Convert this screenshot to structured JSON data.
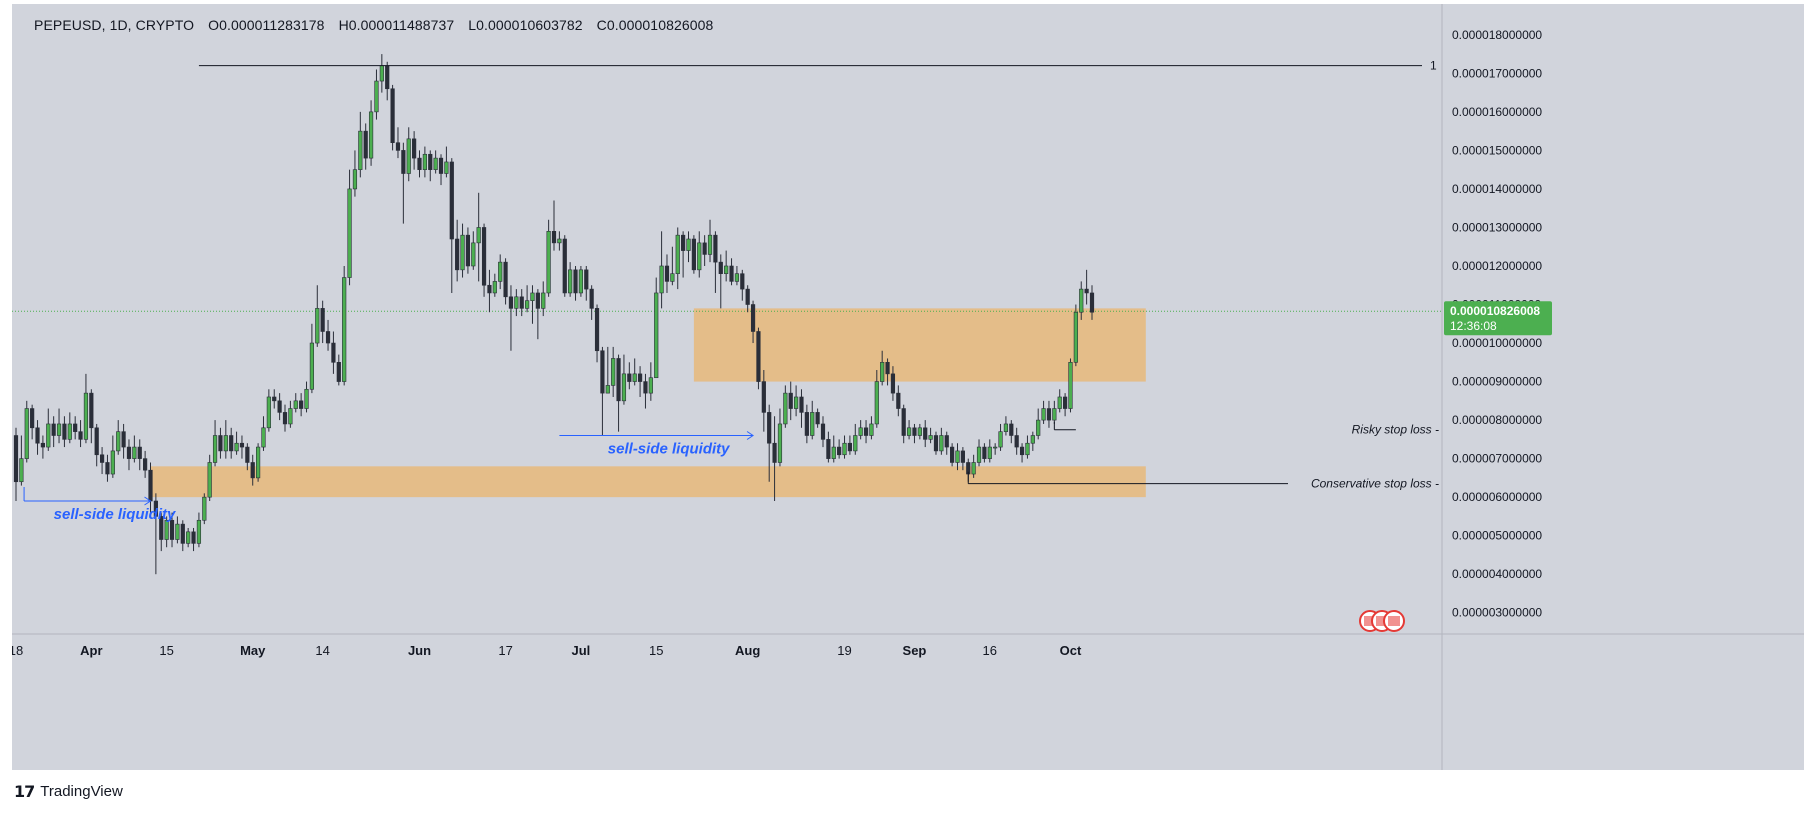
{
  "header": {
    "symbol": "PEPEUSD, 1D, CRYPTO",
    "open": "O0.000011283178",
    "high": "H0.000011488737",
    "low": "L0.000010603782",
    "close": "C0.000010826008"
  },
  "price_tag": {
    "price": "0.000010826008",
    "countdown": "12:36:08"
  },
  "fib_label": "1",
  "annotations": {
    "ssl_left": "sell-side liquidity",
    "ssl_mid": "sell-side liquidity",
    "risky": "Risky stop loss -",
    "conservative": "Conservative stop loss -"
  },
  "brand": "TradingView",
  "colors": {
    "background": "#d1d4dc",
    "up": "#4caf50",
    "down": "#2a2e39",
    "zone": "#e8b87a",
    "annotation_blue": "#2962ff",
    "price_tag": "#4caf50"
  },
  "chart_data": {
    "type": "candlestick",
    "symbol": "PEPEUSD",
    "timeframe": "1D",
    "ylim": [
      2.5e-06,
      1.88e-05
    ],
    "y_ticks": [
      "0.000003000000",
      "0.000004000000",
      "0.000005000000",
      "0.000006000000",
      "0.000007000000",
      "0.000008000000",
      "0.000009000000",
      "0.000010000000",
      "0.000011000000",
      "0.000012000000",
      "0.000013000000",
      "0.000014000000",
      "0.000015000000",
      "0.000016000000",
      "0.000017000000",
      "0.000018000000"
    ],
    "x_ticks": [
      {
        "i": 0,
        "label": "18"
      },
      {
        "i": 14,
        "label": "Apr"
      },
      {
        "i": 28,
        "label": "15"
      },
      {
        "i": 44,
        "label": "May"
      },
      {
        "i": 57,
        "label": "14"
      },
      {
        "i": 75,
        "label": "Jun"
      },
      {
        "i": 91,
        "label": "17"
      },
      {
        "i": 105,
        "label": "Jul"
      },
      {
        "i": 119,
        "label": "15"
      },
      {
        "i": 136,
        "label": "Aug"
      },
      {
        "i": 154,
        "label": "19"
      },
      {
        "i": 167,
        "label": "Sep"
      },
      {
        "i": 181,
        "label": "16"
      },
      {
        "i": 196,
        "label": "Oct"
      }
    ],
    "current_price": 1.0826008e-05,
    "fib_level": 1.72e-05,
    "zones": [
      {
        "from_i": 25,
        "to_i": 210,
        "low": 6e-06,
        "high": 6.8e-06
      },
      {
        "from_i": 126,
        "to_i": 210,
        "low": 9e-06,
        "high": 1.09e-05
      }
    ],
    "candles": [
      [
        7.6,
        6.4,
        7.8,
        5.9
      ],
      [
        6.4,
        7.0,
        7.6,
        6.3
      ],
      [
        7.0,
        8.3,
        8.5,
        6.9
      ],
      [
        8.3,
        7.8,
        8.4,
        7.5
      ],
      [
        7.8,
        7.4,
        8.0,
        7.1
      ],
      [
        7.4,
        7.3,
        7.6,
        7.0
      ],
      [
        7.3,
        7.9,
        8.3,
        7.2
      ],
      [
        7.9,
        7.6,
        8.1,
        7.3
      ],
      [
        7.6,
        7.9,
        8.3,
        7.4
      ],
      [
        7.9,
        7.5,
        8.1,
        7.3
      ],
      [
        7.5,
        7.9,
        8.2,
        7.4
      ],
      [
        7.9,
        7.7,
        8.1,
        7.5
      ],
      [
        7.7,
        7.5,
        8.0,
        7.3
      ],
      [
        7.5,
        8.7,
        9.2,
        7.4
      ],
      [
        8.7,
        7.8,
        8.8,
        7.4
      ],
      [
        7.8,
        7.1,
        7.9,
        6.8
      ],
      [
        7.1,
        6.9,
        7.3,
        6.6
      ],
      [
        6.9,
        6.6,
        7.1,
        6.4
      ],
      [
        6.6,
        7.2,
        7.6,
        6.5
      ],
      [
        7.2,
        7.7,
        8.0,
        7.1
      ],
      [
        7.7,
        7.3,
        7.9,
        7.0
      ],
      [
        7.3,
        7.0,
        7.5,
        6.7
      ],
      [
        7.0,
        7.3,
        7.6,
        6.9
      ],
      [
        7.3,
        7.0,
        7.5,
        6.7
      ],
      [
        7.0,
        6.7,
        7.2,
        6.5
      ],
      [
        6.7,
        5.9,
        6.9,
        5.6
      ],
      [
        5.9,
        5.5,
        6.1,
        4.0
      ],
      [
        5.5,
        4.9,
        5.6,
        4.6
      ],
      [
        4.9,
        5.4,
        5.5,
        4.7
      ],
      [
        5.4,
        4.9,
        5.6,
        4.7
      ],
      [
        4.9,
        5.3,
        5.5,
        4.8
      ],
      [
        5.3,
        4.8,
        5.4,
        4.6
      ],
      [
        4.8,
        5.1,
        5.2,
        4.7
      ],
      [
        5.1,
        4.8,
        5.2,
        4.6
      ],
      [
        4.8,
        5.4,
        5.6,
        4.7
      ],
      [
        5.4,
        6.0,
        6.1,
        5.3
      ],
      [
        6.0,
        6.9,
        7.1,
        5.9
      ],
      [
        6.9,
        7.6,
        8.0,
        6.8
      ],
      [
        7.6,
        7.2,
        7.8,
        7.0
      ],
      [
        7.2,
        7.6,
        8.0,
        7.0
      ],
      [
        7.6,
        7.2,
        7.8,
        7.0
      ],
      [
        7.2,
        7.4,
        7.7,
        7.1
      ],
      [
        7.4,
        7.3,
        7.6,
        7.0
      ],
      [
        7.3,
        6.9,
        7.4,
        6.7
      ],
      [
        6.9,
        6.5,
        7.1,
        6.3
      ],
      [
        6.5,
        7.3,
        7.4,
        6.4
      ],
      [
        7.3,
        7.8,
        8.1,
        7.2
      ],
      [
        7.8,
        8.6,
        8.8,
        7.7
      ],
      [
        8.6,
        8.5,
        8.8,
        8.3
      ],
      [
        8.5,
        8.2,
        8.7,
        8.0
      ],
      [
        8.2,
        7.9,
        8.4,
        7.7
      ],
      [
        7.9,
        8.3,
        8.5,
        7.8
      ],
      [
        8.3,
        8.5,
        8.7,
        8.2
      ],
      [
        8.5,
        8.3,
        8.7,
        8.1
      ],
      [
        8.3,
        8.8,
        9.0,
        8.2
      ],
      [
        8.8,
        10.0,
        10.5,
        8.7
      ],
      [
        10.0,
        10.9,
        11.5,
        9.9
      ],
      [
        10.9,
        10.3,
        11.1,
        10.0
      ],
      [
        10.3,
        10.0,
        10.6,
        9.8
      ],
      [
        10.0,
        9.5,
        10.3,
        9.2
      ],
      [
        9.5,
        9.0,
        9.7,
        8.9
      ],
      [
        9.0,
        11.7,
        12.0,
        8.9
      ],
      [
        11.7,
        14.0,
        14.5,
        11.5
      ],
      [
        14.0,
        14.5,
        15.0,
        13.8
      ],
      [
        14.5,
        15.5,
        16.0,
        14.3
      ],
      [
        15.5,
        14.8,
        15.7,
        14.5
      ],
      [
        14.8,
        16.0,
        16.3,
        14.6
      ],
      [
        16.0,
        16.8,
        17.1,
        15.8
      ],
      [
        16.8,
        17.2,
        17.5,
        16.5
      ],
      [
        17.2,
        16.6,
        17.3,
        16.3
      ],
      [
        16.6,
        15.2,
        16.7,
        15.0
      ],
      [
        15.2,
        15.0,
        15.6,
        14.8
      ],
      [
        15.0,
        14.4,
        15.2,
        13.1
      ],
      [
        14.4,
        15.3,
        15.6,
        14.2
      ],
      [
        15.3,
        14.8,
        15.5,
        14.5
      ],
      [
        14.8,
        14.5,
        15.0,
        14.3
      ],
      [
        14.5,
        14.9,
        15.1,
        14.3
      ],
      [
        14.9,
        14.5,
        15.0,
        14.2
      ],
      [
        14.5,
        14.8,
        15.0,
        14.4
      ],
      [
        14.8,
        14.4,
        14.9,
        14.1
      ],
      [
        14.4,
        14.7,
        15.1,
        14.3
      ],
      [
        14.7,
        12.7,
        14.8,
        11.3
      ],
      [
        12.7,
        11.9,
        13.2,
        11.6
      ],
      [
        11.9,
        12.8,
        13.1,
        11.7
      ],
      [
        12.8,
        12.0,
        13.0,
        11.8
      ],
      [
        12.0,
        12.6,
        12.9,
        11.9
      ],
      [
        12.6,
        13.0,
        13.9,
        11.6
      ],
      [
        13.0,
        11.5,
        13.1,
        11.2
      ],
      [
        11.5,
        11.3,
        11.9,
        10.8
      ],
      [
        11.3,
        11.6,
        11.8,
        11.2
      ],
      [
        11.6,
        12.1,
        12.3,
        11.4
      ],
      [
        12.1,
        11.2,
        12.2,
        11.0
      ],
      [
        11.2,
        10.9,
        11.5,
        9.8
      ],
      [
        10.9,
        11.2,
        11.4,
        10.7
      ],
      [
        11.2,
        10.9,
        11.4,
        10.7
      ],
      [
        10.9,
        11.1,
        11.5,
        10.8
      ],
      [
        11.1,
        11.3,
        11.5,
        10.5
      ],
      [
        11.3,
        10.9,
        11.4,
        10.1
      ],
      [
        10.9,
        11.3,
        11.6,
        10.7
      ],
      [
        11.3,
        12.9,
        13.2,
        11.2
      ],
      [
        12.9,
        12.6,
        13.7,
        12.4
      ],
      [
        12.6,
        12.7,
        12.9,
        12.4
      ],
      [
        12.7,
        11.3,
        12.8,
        11.2
      ],
      [
        11.3,
        11.9,
        12.1,
        11.2
      ],
      [
        11.9,
        11.3,
        12.0,
        11.1
      ],
      [
        11.3,
        11.9,
        12.0,
        11.2
      ],
      [
        11.9,
        11.4,
        12.0,
        11.1
      ],
      [
        11.4,
        10.9,
        11.5,
        10.6
      ],
      [
        10.9,
        9.8,
        11.0,
        9.5
      ],
      [
        9.8,
        8.7,
        9.9,
        7.6
      ],
      [
        8.7,
        8.9,
        9.9,
        8.7
      ],
      [
        8.9,
        9.6,
        9.9,
        8.6
      ],
      [
        9.6,
        8.5,
        9.7,
        7.7
      ],
      [
        8.5,
        9.2,
        9.7,
        8.4
      ],
      [
        9.2,
        9.0,
        9.5,
        8.8
      ],
      [
        9.0,
        9.2,
        9.6,
        8.9
      ],
      [
        9.2,
        9.0,
        9.4,
        8.6
      ],
      [
        9.0,
        8.7,
        9.2,
        8.3
      ],
      [
        8.7,
        9.1,
        9.5,
        8.5
      ],
      [
        9.1,
        11.3,
        11.7,
        9.1
      ],
      [
        11.3,
        12.0,
        12.9,
        10.9
      ],
      [
        12.0,
        11.6,
        12.3,
        11.3
      ],
      [
        11.6,
        11.8,
        12.5,
        11.5
      ],
      [
        11.8,
        12.8,
        13.0,
        11.4
      ],
      [
        12.8,
        12.4,
        12.9,
        11.7
      ],
      [
        12.4,
        12.7,
        12.9,
        12.1
      ],
      [
        12.7,
        11.9,
        12.8,
        11.8
      ],
      [
        11.9,
        12.6,
        12.9,
        11.7
      ],
      [
        12.6,
        12.3,
        12.8,
        12.0
      ],
      [
        12.3,
        12.8,
        13.2,
        12.1
      ],
      [
        12.8,
        12.1,
        12.9,
        11.3
      ],
      [
        12.1,
        11.8,
        12.3,
        10.9
      ],
      [
        11.8,
        12.0,
        12.4,
        11.6
      ],
      [
        12.0,
        11.6,
        12.2,
        11.5
      ],
      [
        11.6,
        11.8,
        12.0,
        11.5
      ],
      [
        11.8,
        11.4,
        11.9,
        11.1
      ],
      [
        11.4,
        11.0,
        11.5,
        10.8
      ],
      [
        11.0,
        10.3,
        11.1,
        10.0
      ],
      [
        10.3,
        9.0,
        10.4,
        8.8
      ],
      [
        9.0,
        8.2,
        9.3,
        7.7
      ],
      [
        8.2,
        7.4,
        8.4,
        6.4
      ],
      [
        7.4,
        6.9,
        8.1,
        5.9
      ],
      [
        6.9,
        7.9,
        8.3,
        6.8
      ],
      [
        7.9,
        8.7,
        8.9,
        7.8
      ],
      [
        8.7,
        8.3,
        9.0,
        8.0
      ],
      [
        8.3,
        8.6,
        8.9,
        8.1
      ],
      [
        8.6,
        8.2,
        8.8,
        7.8
      ],
      [
        8.2,
        7.6,
        8.4,
        7.4
      ],
      [
        7.6,
        8.2,
        8.5,
        7.5
      ],
      [
        8.2,
        7.9,
        8.3,
        7.8
      ],
      [
        7.9,
        7.5,
        8.1,
        7.3
      ],
      [
        7.5,
        7.0,
        7.7,
        6.9
      ],
      [
        7.0,
        7.3,
        7.6,
        6.9
      ],
      [
        7.3,
        7.1,
        7.5,
        7.0
      ],
      [
        7.1,
        7.4,
        7.6,
        7.0
      ],
      [
        7.4,
        7.2,
        7.6,
        7.1
      ],
      [
        7.2,
        7.6,
        7.9,
        7.1
      ],
      [
        7.6,
        7.8,
        8.0,
        7.5
      ],
      [
        7.8,
        7.6,
        8.0,
        7.4
      ],
      [
        7.6,
        7.9,
        8.1,
        7.5
      ],
      [
        7.9,
        9.0,
        9.3,
        7.8
      ],
      [
        9.0,
        9.5,
        9.8,
        8.9
      ],
      [
        9.5,
        9.2,
        9.6,
        8.9
      ],
      [
        9.2,
        8.7,
        9.4,
        8.5
      ],
      [
        8.7,
        8.3,
        8.9,
        8.1
      ],
      [
        8.3,
        7.6,
        8.4,
        7.4
      ],
      [
        7.6,
        7.8,
        8.0,
        7.5
      ],
      [
        7.8,
        7.6,
        7.9,
        7.4
      ],
      [
        7.6,
        7.8,
        7.9,
        7.5
      ],
      [
        7.8,
        7.5,
        8.0,
        7.3
      ],
      [
        7.5,
        7.6,
        7.8,
        7.4
      ],
      [
        7.6,
        7.2,
        7.7,
        7.1
      ],
      [
        7.2,
        7.6,
        7.8,
        7.1
      ],
      [
        7.6,
        7.3,
        7.7,
        7.1
      ],
      [
        7.3,
        6.9,
        7.4,
        6.8
      ],
      [
        6.9,
        7.2,
        7.4,
        6.7
      ],
      [
        7.2,
        6.9,
        7.3,
        6.7
      ],
      [
        6.9,
        6.6,
        7.0,
        6.4
      ],
      [
        6.6,
        6.9,
        7.1,
        6.5
      ],
      [
        6.9,
        7.3,
        7.5,
        6.8
      ],
      [
        7.3,
        7.0,
        7.4,
        6.9
      ],
      [
        7.0,
        7.3,
        7.5,
        6.9
      ],
      [
        7.3,
        7.3,
        7.4,
        7.1
      ],
      [
        7.3,
        7.7,
        7.9,
        7.2
      ],
      [
        7.7,
        7.9,
        8.1,
        7.6
      ],
      [
        7.9,
        7.6,
        8.0,
        7.4
      ],
      [
        7.6,
        7.3,
        7.8,
        7.1
      ],
      [
        7.3,
        7.1,
        7.4,
        6.9
      ],
      [
        7.1,
        7.4,
        7.6,
        7.0
      ],
      [
        7.4,
        7.6,
        7.7,
        7.2
      ],
      [
        7.6,
        8.0,
        8.3,
        7.5
      ],
      [
        8.0,
        8.3,
        8.5,
        7.9
      ],
      [
        8.3,
        8.0,
        8.5,
        7.8
      ],
      [
        8.0,
        8.3,
        8.5,
        7.9
      ],
      [
        8.3,
        8.6,
        8.8,
        8.2
      ],
      [
        8.6,
        8.3,
        8.7,
        8.1
      ],
      [
        8.3,
        9.5,
        9.6,
        8.2
      ],
      [
        9.5,
        10.8,
        11.0,
        9.4
      ],
      [
        10.8,
        11.4,
        11.6,
        10.6
      ],
      [
        11.4,
        11.3,
        11.9,
        11.0
      ],
      [
        11.3,
        10.8,
        11.5,
        10.6
      ]
    ]
  }
}
